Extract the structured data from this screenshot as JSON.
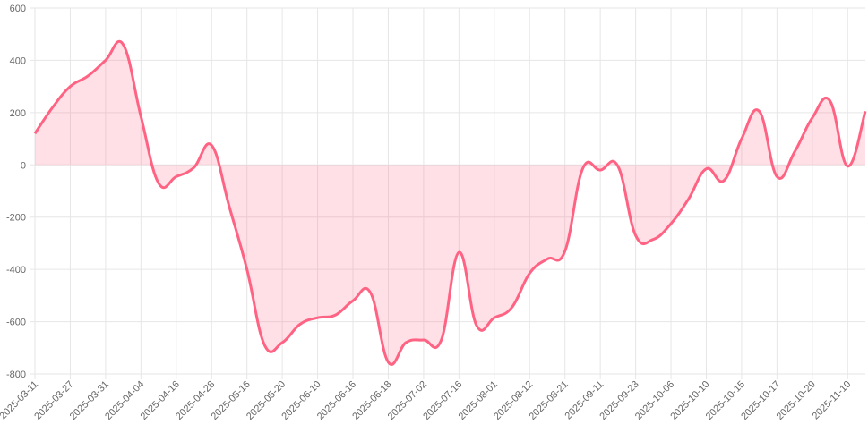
{
  "chart_data": {
    "type": "line",
    "categories": [
      "2025-03-11",
      null,
      "2025-03-27",
      null,
      "2025-03-31",
      null,
      "2025-04-04",
      null,
      "2025-04-16",
      null,
      "2025-04-28",
      null,
      "2025-05-16",
      null,
      "2025-05-20",
      null,
      "2025-06-10",
      null,
      "2025-06-16",
      null,
      "2025-06-18",
      null,
      "2025-07-02",
      null,
      "2025-07-16",
      null,
      "2025-08-01",
      null,
      "2025-08-12",
      null,
      "2025-08-21",
      null,
      "2025-09-11",
      null,
      "2025-09-23",
      null,
      "2025-10-06",
      null,
      "2025-10-10",
      null,
      "2025-10-15",
      null,
      "2025-10-17",
      null,
      "2025-10-29",
      null,
      "2025-11-10",
      null
    ],
    "values": [
      120,
      220,
      300,
      340,
      400,
      460,
      185,
      -70,
      -45,
      -10,
      75,
      -160,
      -400,
      -690,
      -680,
      -610,
      -585,
      -575,
      -520,
      -490,
      -755,
      -680,
      -670,
      -670,
      -335,
      -615,
      -585,
      -545,
      -415,
      -360,
      -330,
      -15,
      -20,
      -5,
      -270,
      -285,
      -225,
      -130,
      -15,
      -60,
      100,
      205,
      -45,
      50,
      180,
      245,
      -5,
      205
    ],
    "color": "#ff6384",
    "fill_color": "rgba(255,99,132,0.2)",
    "ylim": [
      -800,
      600
    ],
    "yticks": [
      -800,
      -600,
      -400,
      -200,
      0,
      200,
      400,
      600
    ],
    "grid": true
  }
}
